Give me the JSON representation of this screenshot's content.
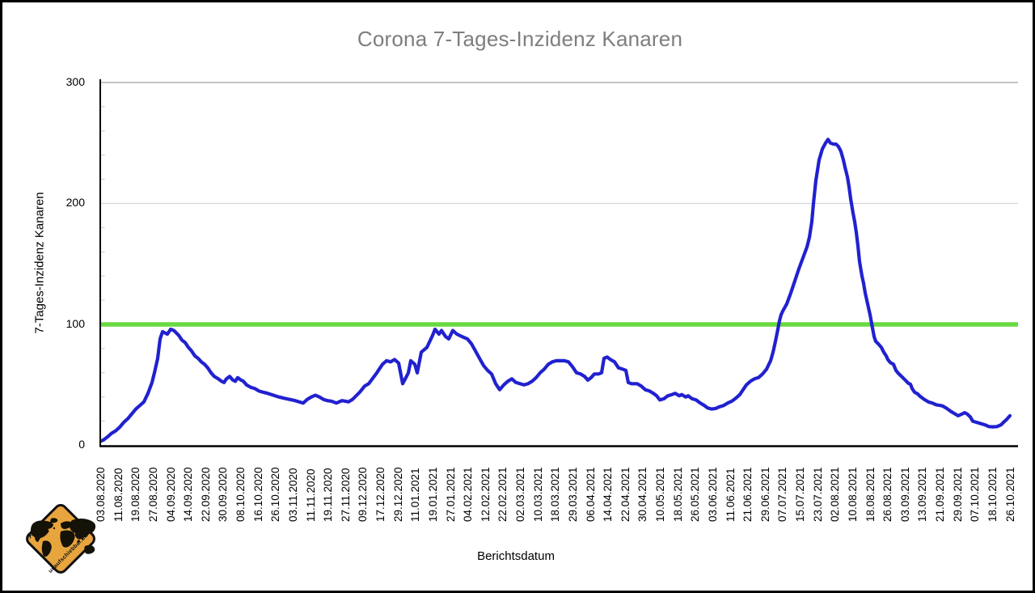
{
  "title": "Corona 7-Tages-Inzidenz Kanaren",
  "y_axis": {
    "label": "7-Tages-Inzidenz Kanaren",
    "ticks": [
      0,
      100,
      200,
      300
    ]
  },
  "x_axis": {
    "label": "Berichtsdatum"
  },
  "colors": {
    "line_blue": "#2121d0",
    "threshold_green": "#68da40",
    "grid_major_top": "#b0b0b0",
    "grid_major": "#d6d6d6",
    "axis": "#000000",
    "title_gray": "#7e7e7e",
    "logo_yellow": "#e8a53e"
  },
  "logo": {
    "text": "unaufschiebbar.de",
    "plane_icon": "✈",
    "world_map_icon": "world-map"
  },
  "chart_data": {
    "type": "line",
    "title": "Corona 7-Tages-Inzidenz Kanaren",
    "xlabel": "Berichtsdatum",
    "ylabel": "7-Tages-Inzidenz Kanaren",
    "ylim": [
      0,
      300
    ],
    "grid": "horizontal-major",
    "legend": "none",
    "reference_line_y": 100,
    "x_tick_labels": [
      "03.08.2020",
      "11.08.2020",
      "19.08.2020",
      "27.08.2020",
      "04.09.2020",
      "14.09.2020",
      "22.09.2020",
      "30.09.2020",
      "08.10.2020",
      "16.10.2020",
      "26.10.2020",
      "03.11.2020",
      "11.11.2020",
      "19.11.2020",
      "27.11.2020",
      "09.12.2020",
      "17.12.2020",
      "29.12.2020",
      "11.01.2021",
      "19.01.2021",
      "27.01.2021",
      "04.02.2021",
      "12.02.2021",
      "22.02.2021",
      "02.03.2021",
      "10.03.2021",
      "18.03.2021",
      "29.03.2021",
      "06.04.2021",
      "14.04.2021",
      "22.04.2021",
      "30.04.2021",
      "10.05.2021",
      "18.05.2021",
      "26.05.2021",
      "03.06.2021",
      "11.06.2021",
      "21.06.2021",
      "29.06.2021",
      "07.07.2021",
      "15.07.2021",
      "23.07.2021",
      "02.08.2021",
      "10.08.2021",
      "18.08.2021",
      "26.08.2021",
      "03.09.2021",
      "13.09.2021",
      "21.09.2021",
      "29.09.2021",
      "07.10.2021",
      "18.10.2021",
      "26.10.2021"
    ],
    "values_at_ticks": [
      3.5,
      14,
      30,
      57,
      96,
      81,
      66,
      52,
      54,
      45,
      41,
      37.5,
      40,
      37,
      36.5,
      48,
      65,
      68,
      66,
      91,
      94,
      87,
      64,
      49,
      51,
      57,
      70,
      65,
      56,
      73,
      62,
      48,
      38,
      41.5,
      37.5,
      30,
      36,
      50,
      62,
      111,
      149,
      191,
      249,
      176,
      106,
      71,
      54,
      39,
      33,
      25,
      19,
      15,
      24.5
    ],
    "dense_series": [
      [
        0,
        3
      ],
      [
        5,
        4.5
      ],
      [
        10,
        7
      ],
      [
        15,
        10
      ],
      [
        20,
        12
      ],
      [
        25,
        15
      ],
      [
        30,
        19
      ],
      [
        35,
        22
      ],
      [
        40,
        26
      ],
      [
        45,
        30
      ],
      [
        50,
        33
      ],
      [
        55,
        36
      ],
      [
        60,
        43
      ],
      [
        65,
        52
      ],
      [
        68,
        60
      ],
      [
        72,
        72
      ],
      [
        75,
        88
      ],
      [
        78,
        94
      ],
      [
        81,
        93
      ],
      [
        84,
        92
      ],
      [
        88,
        96
      ],
      [
        92,
        95
      ],
      [
        95,
        93
      ],
      [
        98,
        91
      ],
      [
        102,
        87
      ],
      [
        106,
        85
      ],
      [
        110,
        81
      ],
      [
        114,
        78
      ],
      [
        118,
        74
      ],
      [
        122,
        72
      ],
      [
        126,
        69
      ],
      [
        130,
        67
      ],
      [
        134,
        64
      ],
      [
        138,
        60
      ],
      [
        142,
        57
      ],
      [
        147,
        55
      ],
      [
        151,
        53
      ],
      [
        154,
        52
      ],
      [
        157,
        55
      ],
      [
        161,
        57
      ],
      [
        165,
        54
      ],
      [
        168,
        53
      ],
      [
        171,
        56
      ],
      [
        175,
        54
      ],
      [
        178,
        53
      ],
      [
        182,
        50
      ],
      [
        187,
        48
      ],
      [
        192,
        47
      ],
      [
        197,
        45
      ],
      [
        202,
        44
      ],
      [
        208,
        43
      ],
      [
        215,
        41.5
      ],
      [
        222,
        40
      ],
      [
        228,
        39
      ],
      [
        235,
        38
      ],
      [
        242,
        37
      ],
      [
        247,
        36
      ],
      [
        252,
        35
      ],
      [
        257,
        38
      ],
      [
        262,
        40
      ],
      [
        267,
        41.5
      ],
      [
        272,
        40
      ],
      [
        277,
        38
      ],
      [
        282,
        37
      ],
      [
        287,
        36.5
      ],
      [
        293,
        35
      ],
      [
        300,
        37
      ],
      [
        308,
        36
      ],
      [
        313,
        38
      ],
      [
        322,
        44
      ],
      [
        328,
        49
      ],
      [
        333,
        51
      ],
      [
        342,
        59
      ],
      [
        350,
        67
      ],
      [
        355,
        70
      ],
      [
        360,
        69
      ],
      [
        365,
        71
      ],
      [
        370,
        68
      ],
      [
        375,
        51
      ],
      [
        379,
        56
      ],
      [
        382,
        60
      ],
      [
        385,
        70
      ],
      [
        390,
        67
      ],
      [
        393,
        60
      ],
      [
        398,
        77
      ],
      [
        405,
        81
      ],
      [
        412,
        91
      ],
      [
        415,
        96
      ],
      [
        420,
        92
      ],
      [
        423,
        95
      ],
      [
        428,
        90
      ],
      [
        432,
        88
      ],
      [
        437,
        95
      ],
      [
        442,
        92
      ],
      [
        448,
        90
      ],
      [
        455,
        88
      ],
      [
        460,
        84
      ],
      [
        465,
        78
      ],
      [
        470,
        72
      ],
      [
        475,
        66
      ],
      [
        480,
        62
      ],
      [
        485,
        59
      ],
      [
        490,
        51
      ],
      [
        495,
        46
      ],
      [
        500,
        50
      ],
      [
        505,
        53
      ],
      [
        510,
        55
      ],
      [
        515,
        52
      ],
      [
        520,
        51
      ],
      [
        525,
        50
      ],
      [
        530,
        51
      ],
      [
        535,
        53
      ],
      [
        540,
        56
      ],
      [
        545,
        60
      ],
      [
        550,
        63
      ],
      [
        555,
        67
      ],
      [
        560,
        69
      ],
      [
        565,
        70
      ],
      [
        570,
        70
      ],
      [
        575,
        70
      ],
      [
        580,
        69
      ],
      [
        585,
        65
      ],
      [
        590,
        60
      ],
      [
        595,
        59
      ],
      [
        600,
        57
      ],
      [
        604,
        54
      ],
      [
        608,
        56
      ],
      [
        612,
        59
      ],
      [
        617,
        59
      ],
      [
        621,
        60
      ],
      [
        624,
        72
      ],
      [
        628,
        73
      ],
      [
        632,
        71
      ],
      [
        637,
        69
      ],
      [
        642,
        64
      ],
      [
        647,
        63
      ],
      [
        651,
        62
      ],
      [
        654,
        52
      ],
      [
        658,
        51
      ],
      [
        665,
        51
      ],
      [
        670,
        49
      ],
      [
        675,
        46
      ],
      [
        680,
        45
      ],
      [
        685,
        43
      ],
      [
        689,
        41
      ],
      [
        693,
        37.5
      ],
      [
        698,
        38.5
      ],
      [
        703,
        41
      ],
      [
        708,
        42
      ],
      [
        712,
        43
      ],
      [
        717,
        41
      ],
      [
        720,
        42
      ],
      [
        725,
        40
      ],
      [
        728,
        41
      ],
      [
        733,
        38.5
      ],
      [
        738,
        37.5
      ],
      [
        743,
        35
      ],
      [
        748,
        33
      ],
      [
        752,
        31
      ],
      [
        757,
        30
      ],
      [
        762,
        30.5
      ],
      [
        767,
        32
      ],
      [
        772,
        33
      ],
      [
        777,
        35
      ],
      [
        782,
        36.5
      ],
      [
        787,
        39
      ],
      [
        792,
        42
      ],
      [
        796,
        46
      ],
      [
        800,
        50
      ],
      [
        805,
        53
      ],
      [
        810,
        55
      ],
      [
        815,
        56
      ],
      [
        820,
        59
      ],
      [
        825,
        63
      ],
      [
        830,
        70
      ],
      [
        833,
        77
      ],
      [
        836,
        86
      ],
      [
        839,
        96
      ],
      [
        841,
        103
      ],
      [
        843,
        108
      ],
      [
        845,
        111
      ],
      [
        850,
        117
      ],
      [
        855,
        126
      ],
      [
        860,
        136
      ],
      [
        865,
        146
      ],
      [
        870,
        155
      ],
      [
        875,
        164
      ],
      [
        878,
        172
      ],
      [
        881,
        185
      ],
      [
        883,
        200
      ],
      [
        886,
        219
      ],
      [
        890,
        236
      ],
      [
        894,
        245
      ],
      [
        898,
        250
      ],
      [
        901,
        253
      ],
      [
        904,
        250
      ],
      [
        908,
        249
      ],
      [
        911,
        249
      ],
      [
        914,
        247
      ],
      [
        917,
        243
      ],
      [
        920,
        236
      ],
      [
        922,
        230
      ],
      [
        925,
        222
      ],
      [
        927,
        214
      ],
      [
        929,
        204
      ],
      [
        932,
        192
      ],
      [
        934,
        185
      ],
      [
        936,
        176
      ],
      [
        938,
        165
      ],
      [
        940,
        152
      ],
      [
        943,
        140
      ],
      [
        945,
        134
      ],
      [
        947,
        126
      ],
      [
        950,
        117
      ],
      [
        953,
        108
      ],
      [
        956,
        97
      ],
      [
        958,
        90
      ],
      [
        960,
        86
      ],
      [
        963,
        84
      ],
      [
        967,
        81
      ],
      [
        970,
        77
      ],
      [
        973,
        74
      ],
      [
        975,
        71
      ],
      [
        978,
        68.5
      ],
      [
        982,
        67
      ],
      [
        985,
        62
      ],
      [
        988,
        59.5
      ],
      [
        992,
        57
      ],
      [
        995,
        55
      ],
      [
        998,
        53
      ],
      [
        1000,
        51.5
      ],
      [
        1003,
        50.5
      ],
      [
        1005,
        47
      ],
      [
        1008,
        44
      ],
      [
        1012,
        42.5
      ],
      [
        1015,
        40.5
      ],
      [
        1020,
        38
      ],
      [
        1025,
        36
      ],
      [
        1030,
        35
      ],
      [
        1035,
        33.5
      ],
      [
        1040,
        33
      ],
      [
        1043,
        32.5
      ],
      [
        1048,
        30.5
      ],
      [
        1053,
        28
      ],
      [
        1058,
        26
      ],
      [
        1062,
        24.5
      ],
      [
        1067,
        26
      ],
      [
        1070,
        27
      ],
      [
        1073,
        26
      ],
      [
        1077,
        23.5
      ],
      [
        1080,
        20
      ],
      [
        1085,
        19
      ],
      [
        1090,
        18
      ],
      [
        1095,
        17
      ],
      [
        1100,
        15.5
      ],
      [
        1105,
        15.3
      ],
      [
        1110,
        15.5
      ],
      [
        1115,
        17
      ],
      [
        1118,
        19
      ],
      [
        1122,
        21.5
      ],
      [
        1126,
        24.5
      ]
    ]
  },
  "geometry_note": "x positions of dense_series are pixels from plot-left edge (plot width 1136 = 53 date ticks)"
}
